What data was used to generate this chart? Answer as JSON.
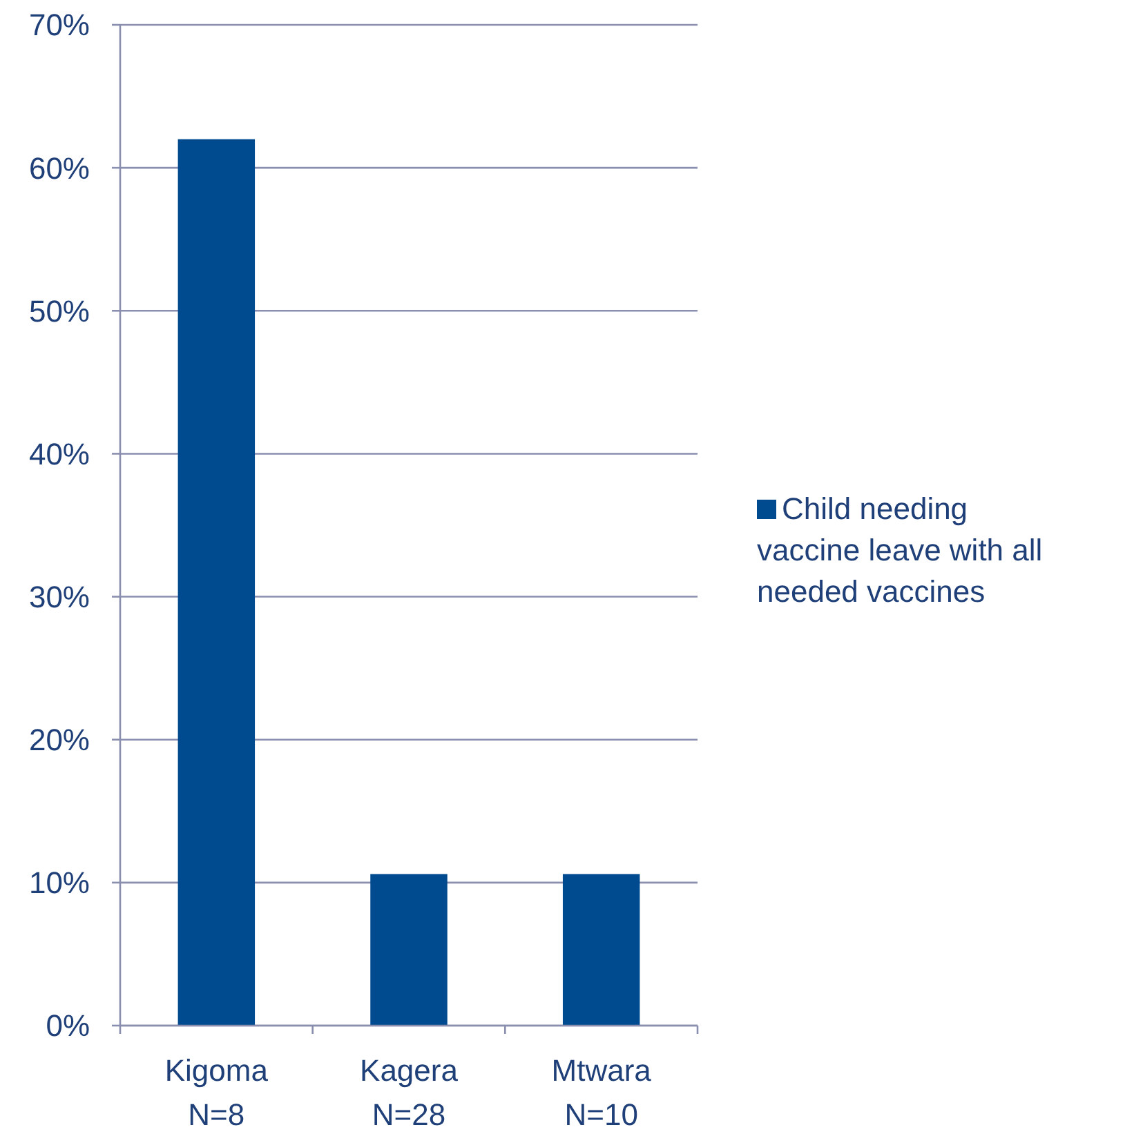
{
  "chart_data": {
    "type": "bar",
    "categories": [
      "Kigoma\nN=8",
      "Kagera\nN=28",
      "Mtwara\nN=10"
    ],
    "series": [
      {
        "name": "Child needing vaccine leave with all needed vaccines",
        "color": "#004a8f",
        "values": [
          62,
          10.6,
          10.6
        ]
      }
    ],
    "ylim": [
      0,
      70
    ],
    "yticks": [
      {
        "value": 0,
        "label": "0%"
      },
      {
        "value": 10,
        "label": "10%"
      },
      {
        "value": 20,
        "label": "20%"
      },
      {
        "value": 30,
        "label": "30%"
      },
      {
        "value": 40,
        "label": "40%"
      },
      {
        "value": 50,
        "label": "50%"
      },
      {
        "value": 60,
        "label": "60%"
      },
      {
        "value": 70,
        "label": "70%"
      }
    ],
    "grid": "y",
    "legend": "right"
  }
}
